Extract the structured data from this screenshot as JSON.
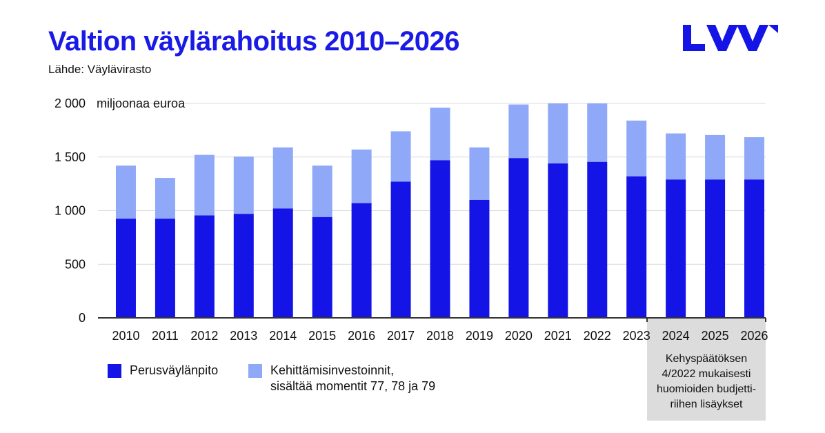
{
  "title": "Valtion väylärahoitus 2010–2026",
  "source": "Lähde: Väylävirasto",
  "logo": {
    "text": "LVM",
    "icon": "lvm-logo"
  },
  "colors": {
    "base": "#1414e6",
    "development": "#8fa8f8",
    "title": "#1a1ae6",
    "note_bg": "#dcdcdc"
  },
  "legend": {
    "base": "Perusväylänpito",
    "development_line1": "Kehittämisinvestoinnit,",
    "development_line2": "sisältää momentit 77, 78 ja 79"
  },
  "note": {
    "lines": [
      "Kehyspäätöksen",
      "4/2022 mukaisesti",
      "huomioiden budjetti-",
      "riihen lisäykset"
    ]
  },
  "chart_data": {
    "type": "bar",
    "stacked": true,
    "title": "Valtion väylärahoitus 2010–2026",
    "ylabel": "miljoonaa euroa",
    "ylim": [
      0,
      2000
    ],
    "yticks": [
      0,
      500,
      1000,
      1500,
      2000
    ],
    "ytick_labels": [
      "0",
      "500",
      "1 000",
      "1 500",
      "2 000"
    ],
    "grid": true,
    "categories": [
      "2010",
      "2011",
      "2012",
      "2013",
      "2014",
      "2015",
      "2016",
      "2017",
      "2018",
      "2019",
      "2020",
      "2021",
      "2022",
      "2023",
      "2024",
      "2025",
      "2026"
    ],
    "series": [
      {
        "name": "Perusväylänpito",
        "values": [
          925,
          925,
          955,
          970,
          1020,
          940,
          1070,
          1270,
          1470,
          1100,
          1490,
          1440,
          1455,
          1320,
          1290,
          1290,
          1290
        ]
      },
      {
        "name": "Kehittämisinvestoinnit, sisältää momentit 77, 78 ja 79",
        "values": [
          495,
          380,
          565,
          535,
          570,
          480,
          500,
          470,
          490,
          490,
          500,
          560,
          545,
          520,
          430,
          415,
          395
        ]
      }
    ],
    "highlighted_categories": [
      "2024",
      "2025",
      "2026"
    ],
    "legend_position": "bottom-left"
  }
}
